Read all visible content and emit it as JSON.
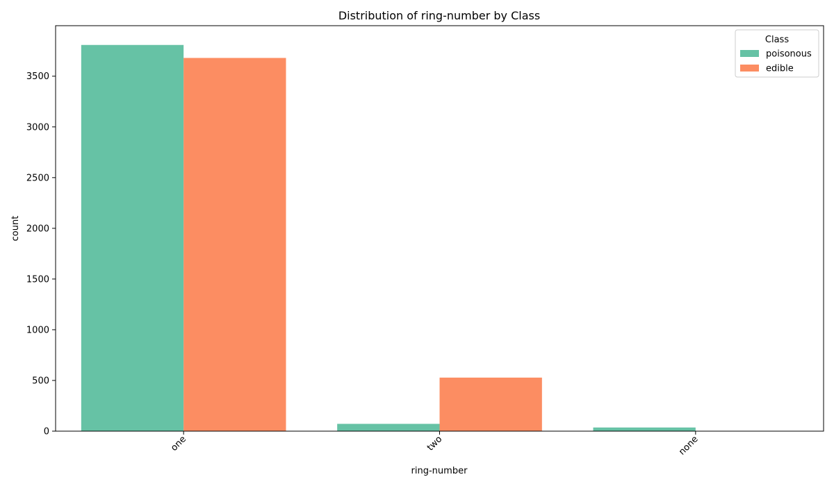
{
  "chart_data": {
    "type": "bar",
    "title": "Distribution of ring-number by Class",
    "xlabel": "ring-number",
    "ylabel": "count",
    "categories": [
      "one",
      "two",
      "none"
    ],
    "series": [
      {
        "name": "poisonous",
        "color": "#66c2a5",
        "values": [
          3808,
          72,
          36
        ]
      },
      {
        "name": "edible",
        "color": "#fc8d62",
        "values": [
          3680,
          528,
          0
        ]
      }
    ],
    "ylim": [
      0,
      3998
    ],
    "yticks": [
      0,
      500,
      1000,
      1500,
      2000,
      2500,
      3000,
      3500
    ],
    "legend": {
      "title": "Class",
      "position": "top-right"
    },
    "grid": false
  }
}
